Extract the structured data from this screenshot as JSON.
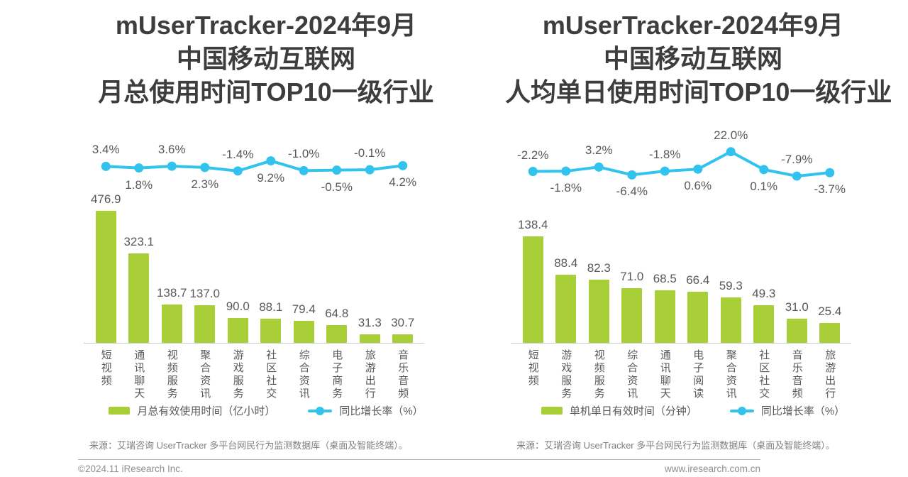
{
  "footer": {
    "left": "©2024.11 iResearch Inc.",
    "right": "www.iresearch.com.cn"
  },
  "colors": {
    "bar_green": "#a8ce38",
    "line_cyan": "#31c3ee",
    "title_gray": "#3d3d3d",
    "label_gray": "#595959",
    "source_gray": "#7f7f7f"
  },
  "chart_data": [
    {
      "type": "bar",
      "combo": "bar+line",
      "title": "mUserTracker-2024年9月 中国移动互联网 月总使用时间TOP10一级行业",
      "title_lines": [
        "mUserTracker-2024年9月",
        "中国移动互联网",
        "月总使用时间TOP10一级行业"
      ],
      "categories": [
        "短视频",
        "通讯聊天",
        "视频服务",
        "聚合资讯",
        "游戏服务",
        "社区社交",
        "综合资讯",
        "电子商务",
        "旅游出行",
        "音乐音频"
      ],
      "series": [
        {
          "name": "月总有效使用时间（亿小时）",
          "type": "bar",
          "unit": "亿小时",
          "values": [
            476.9,
            323.1,
            138.7,
            137.0,
            90.0,
            88.1,
            79.4,
            64.8,
            31.3,
            30.7
          ]
        },
        {
          "name": "同比增长率（%）",
          "type": "line",
          "unit": "%",
          "values": [
            3.4,
            1.8,
            3.6,
            2.3,
            -1.4,
            9.2,
            -1.0,
            -0.5,
            -0.1,
            4.2
          ]
        }
      ],
      "legend_position": "bottom",
      "grid": false,
      "source": "来源：艾瑞咨询 UserTracker 多平台网民行为监测数据库（桌面及智能终端）。"
    },
    {
      "type": "bar",
      "combo": "bar+line",
      "title": "mUserTracker-2024年9月 中国移动互联网 人均单日使用时间TOP10一级行业",
      "title_lines": [
        "mUserTracker-2024年9月",
        "中国移动互联网",
        "人均单日使用时间TOP10一级行业"
      ],
      "categories": [
        "短视频",
        "游戏服务",
        "视频服务",
        "综合资讯",
        "通讯聊天",
        "电子阅读",
        "聚合资讯",
        "社区社交",
        "音乐音频",
        "旅游出行"
      ],
      "series": [
        {
          "name": "单机单日有效时间（分钟）",
          "type": "bar",
          "unit": "分钟",
          "values": [
            138.4,
            88.4,
            82.3,
            71.0,
            68.5,
            66.4,
            59.3,
            49.3,
            31.0,
            25.4
          ]
        },
        {
          "name": "同比增长率（%）",
          "type": "line",
          "unit": "%",
          "values": [
            -2.2,
            -1.8,
            3.2,
            -6.4,
            -1.8,
            0.6,
            22.0,
            0.1,
            -7.9,
            -3.7
          ]
        }
      ],
      "legend_position": "bottom",
      "grid": false,
      "source": "来源：艾瑞咨询 UserTracker 多平台网民行为监测数据库（桌面及智能终端）。"
    }
  ]
}
